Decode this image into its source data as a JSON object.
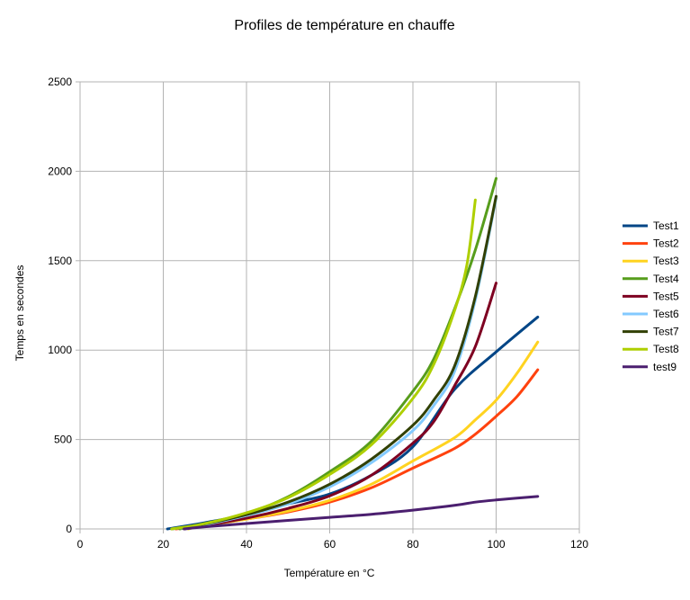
{
  "chart_data": {
    "type": "line",
    "title": "Profiles de température en chauffe",
    "xlabel": "Température en °C",
    "ylabel": "Temps en secondes",
    "xlim": [
      0,
      120
    ],
    "ylim": [
      0,
      2500
    ],
    "xticks": [
      0,
      20,
      40,
      60,
      80,
      100,
      120
    ],
    "yticks": [
      0,
      500,
      1000,
      1500,
      2000,
      2500
    ],
    "grid": true,
    "legend": "right",
    "series": [
      {
        "name": "Test1",
        "color": "#004586",
        "points": [
          [
            21,
            0
          ],
          [
            30,
            35
          ],
          [
            40,
            80
          ],
          [
            50,
            140
          ],
          [
            60,
            195
          ],
          [
            70,
            300
          ],
          [
            80,
            460
          ],
          [
            90,
            780
          ],
          [
            100,
            990
          ],
          [
            110,
            1185
          ]
        ]
      },
      {
        "name": "Test2",
        "color": "#ff420e",
        "points": [
          [
            23,
            0
          ],
          [
            30,
            20
          ],
          [
            40,
            55
          ],
          [
            50,
            95
          ],
          [
            60,
            150
          ],
          [
            70,
            230
          ],
          [
            80,
            340
          ],
          [
            90,
            450
          ],
          [
            95,
            530
          ],
          [
            100,
            630
          ],
          [
            105,
            740
          ],
          [
            110,
            890
          ]
        ]
      },
      {
        "name": "Test3",
        "color": "#ffd320",
        "points": [
          [
            26,
            0
          ],
          [
            30,
            20
          ],
          [
            40,
            55
          ],
          [
            50,
            100
          ],
          [
            60,
            160
          ],
          [
            70,
            250
          ],
          [
            80,
            380
          ],
          [
            90,
            510
          ],
          [
            95,
            610
          ],
          [
            100,
            720
          ],
          [
            105,
            870
          ],
          [
            110,
            1045
          ]
        ]
      },
      {
        "name": "Test4",
        "color": "#579d1c",
        "points": [
          [
            24,
            0
          ],
          [
            30,
            30
          ],
          [
            40,
            85
          ],
          [
            50,
            180
          ],
          [
            60,
            320
          ],
          [
            70,
            490
          ],
          [
            80,
            770
          ],
          [
            85,
            950
          ],
          [
            90,
            1230
          ],
          [
            95,
            1560
          ],
          [
            100,
            1960
          ]
        ]
      },
      {
        "name": "Test5",
        "color": "#7e0021",
        "points": [
          [
            25,
            0
          ],
          [
            30,
            20
          ],
          [
            40,
            60
          ],
          [
            50,
            115
          ],
          [
            60,
            185
          ],
          [
            70,
            300
          ],
          [
            80,
            480
          ],
          [
            85,
            600
          ],
          [
            90,
            800
          ],
          [
            95,
            1020
          ],
          [
            100,
            1375
          ]
        ]
      },
      {
        "name": "Test6",
        "color": "#83caff",
        "points": [
          [
            22,
            0
          ],
          [
            30,
            25
          ],
          [
            40,
            75
          ],
          [
            50,
            140
          ],
          [
            60,
            235
          ],
          [
            70,
            370
          ],
          [
            80,
            550
          ],
          [
            85,
            690
          ],
          [
            90,
            880
          ],
          [
            95,
            1280
          ],
          [
            100,
            1850
          ]
        ]
      },
      {
        "name": "Test7",
        "color": "#314004",
        "points": [
          [
            22,
            0
          ],
          [
            30,
            28
          ],
          [
            40,
            80
          ],
          [
            50,
            150
          ],
          [
            60,
            250
          ],
          [
            70,
            390
          ],
          [
            80,
            580
          ],
          [
            85,
            720
          ],
          [
            90,
            910
          ],
          [
            95,
            1300
          ],
          [
            100,
            1860
          ]
        ]
      },
      {
        "name": "Test8",
        "color": "#aecf00",
        "points": [
          [
            22,
            0
          ],
          [
            30,
            30
          ],
          [
            40,
            90
          ],
          [
            50,
            175
          ],
          [
            60,
            305
          ],
          [
            70,
            470
          ],
          [
            80,
            730
          ],
          [
            85,
            920
          ],
          [
            90,
            1220
          ],
          [
            93,
            1480
          ],
          [
            95,
            1840
          ]
        ]
      },
      {
        "name": "test9",
        "color": "#4b1f6f",
        "points": [
          [
            25,
            0
          ],
          [
            30,
            12
          ],
          [
            40,
            30
          ],
          [
            50,
            48
          ],
          [
            60,
            65
          ],
          [
            70,
            82
          ],
          [
            80,
            105
          ],
          [
            90,
            132
          ],
          [
            95,
            150
          ],
          [
            100,
            162
          ],
          [
            110,
            182
          ]
        ]
      }
    ]
  }
}
